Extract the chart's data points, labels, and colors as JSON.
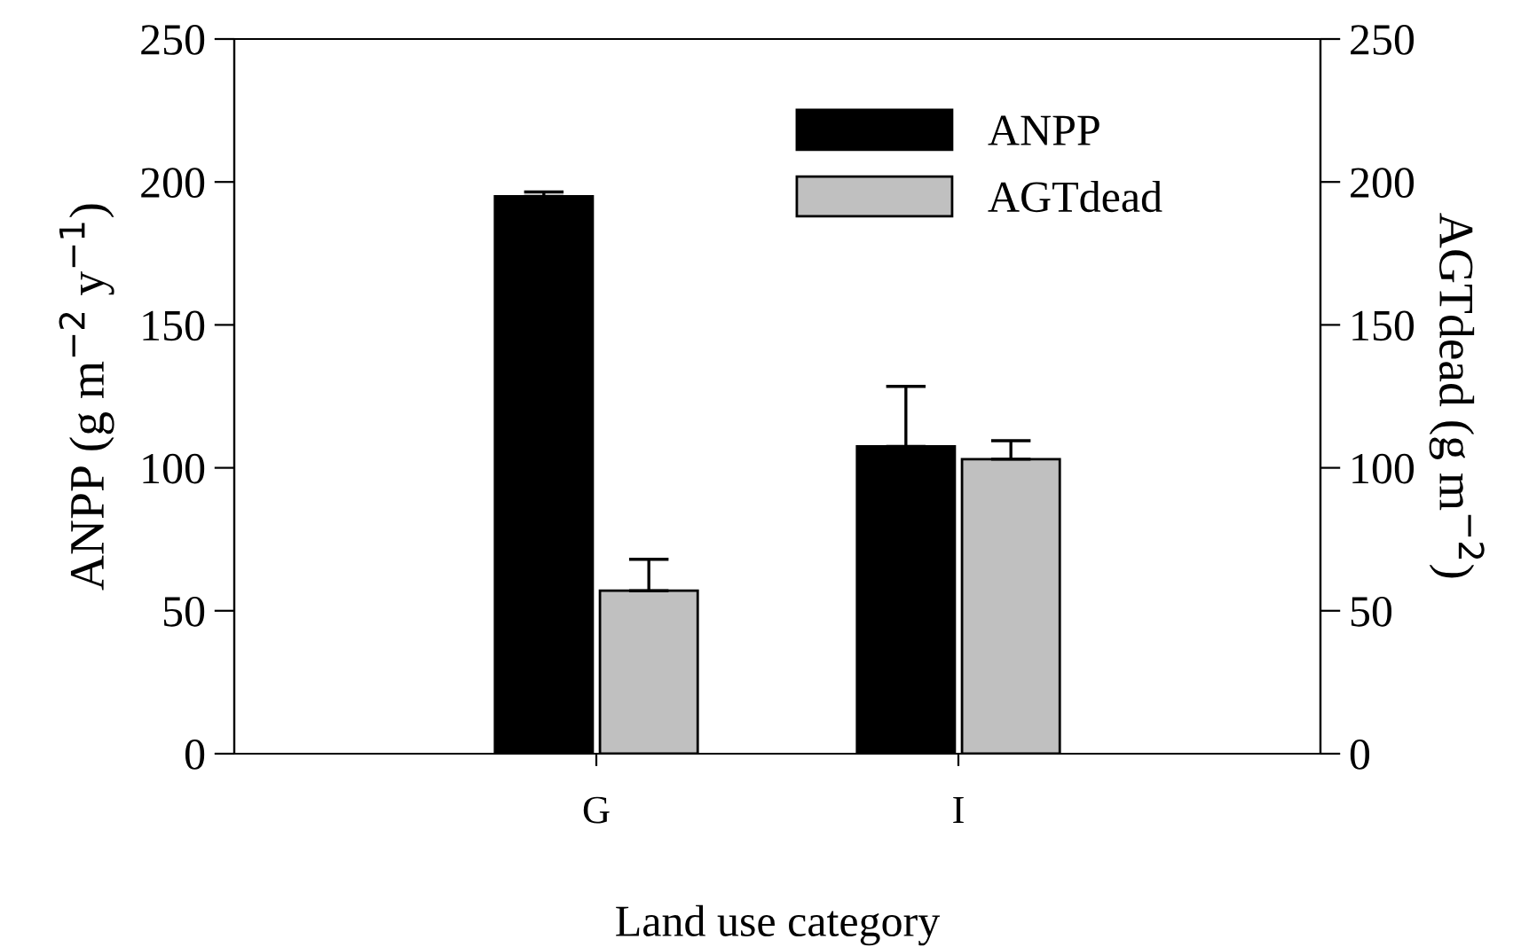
{
  "chart_data": {
    "type": "bar",
    "xlabel": "Land use category",
    "ylabel": "ANPP (g m$^{−2}$ y$^{−1}$)",
    "y2label": "AGTdead (g m$^{−2}$)",
    "categories": [
      "G",
      "I"
    ],
    "series": [
      {
        "name": "ANPP",
        "color": "#000000",
        "values": [
          195,
          107.5
        ],
        "errors": [
          [
            195,
            196.5
          ],
          [
            107.5,
            128.5
          ]
        ]
      },
      {
        "name": "AGTdead",
        "color": "#c0c0c0",
        "values": [
          57,
          103
        ],
        "errors": [
          [
            57,
            68
          ],
          [
            103,
            109.5
          ]
        ]
      }
    ],
    "ylim": [
      0,
      250
    ],
    "yticks": [
      0,
      50,
      100,
      150,
      200,
      250
    ],
    "y2lim": [
      0,
      250
    ],
    "y2ticks": [
      0,
      50,
      100,
      150,
      200,
      250
    ],
    "legend": "top right",
    "grid": false
  }
}
